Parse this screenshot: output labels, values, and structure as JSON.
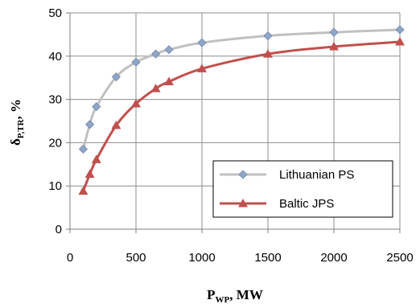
{
  "chart_data": {
    "type": "line",
    "title": "",
    "xlabel": {
      "main": "P",
      "sub": "WP",
      "suffix": ", MW"
    },
    "ylabel": {
      "main": "δ",
      "sub": "P,TR",
      "suffix": ", %"
    },
    "xlim": [
      0,
      2500
    ],
    "ylim": [
      0,
      50
    ],
    "xticks": [
      0,
      500,
      1000,
      1500,
      2000,
      2500
    ],
    "yticks": [
      0,
      10,
      20,
      30,
      40,
      50
    ],
    "grid": "horizontal and vertical major gridlines",
    "legend_position": "bottom-right",
    "series": [
      {
        "name": "Lithuanian PS",
        "color": "#c0c0c0",
        "marker": "diamond",
        "marker_color": "#8fa6c8",
        "x": [
          100,
          150,
          200,
          350,
          500,
          650,
          750,
          1000,
          1500,
          2000,
          2500
        ],
        "y": [
          18.5,
          24.2,
          28.3,
          35.2,
          38.6,
          40.5,
          41.5,
          43.1,
          44.7,
          45.5,
          46.1
        ]
      },
      {
        "name": "Baltic JPS",
        "color": "#c0504d",
        "marker": "triangle",
        "marker_color": "#c0504d",
        "x": [
          100,
          150,
          200,
          350,
          500,
          650,
          750,
          1000,
          1500,
          2000,
          2500
        ],
        "y": [
          8.8,
          12.7,
          16.1,
          24.0,
          29.0,
          32.5,
          34.1,
          37.1,
          40.5,
          42.2,
          43.3
        ]
      }
    ]
  }
}
